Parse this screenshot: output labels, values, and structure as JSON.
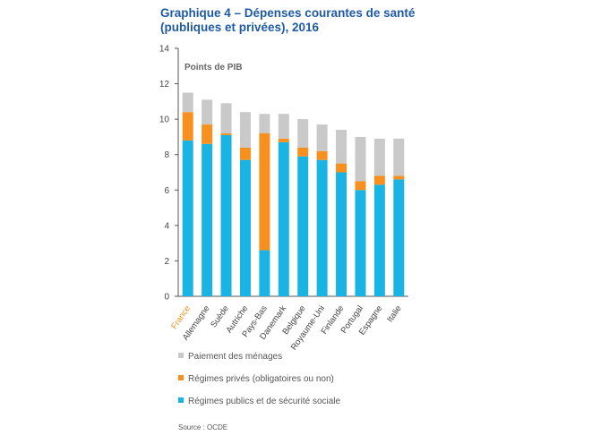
{
  "title": {
    "line1": "Graphique 4 – Dépenses courantes de santé",
    "line2": "(publiques et privées), 2016"
  },
  "source": "Source : OCDE",
  "chart_data": {
    "type": "bar",
    "stacked": true,
    "ylabel": "Points de PIB",
    "ylim": [
      0,
      14
    ],
    "yticks": [
      0,
      2,
      4,
      6,
      8,
      10,
      12,
      14
    ],
    "grid": false,
    "highlight_category": "France",
    "categories": [
      "France",
      "Allemagne",
      "Suède",
      "Autriche",
      "Pays-Bas",
      "Danemark",
      "Belgique",
      "Royaume-Uni",
      "Finlande",
      "Portugal",
      "Espagne",
      "Italie"
    ],
    "series": [
      {
        "name": "Régimes publics et de sécurité sociale",
        "color": "#1ab4e4",
        "values": [
          8.8,
          8.6,
          9.1,
          7.7,
          2.6,
          8.7,
          7.9,
          7.7,
          7.0,
          6.0,
          6.3,
          6.6
        ]
      },
      {
        "name": "Régimes privés (obligatoires ou non)",
        "color": "#f7901e",
        "values": [
          1.6,
          1.1,
          0.1,
          0.7,
          6.6,
          0.2,
          0.5,
          0.5,
          0.5,
          0.5,
          0.5,
          0.2
        ]
      },
      {
        "name": "Paiement des ménages",
        "color": "#c9c9c9",
        "values": [
          1.1,
          1.4,
          1.7,
          2.0,
          1.1,
          1.4,
          1.6,
          1.5,
          1.9,
          2.5,
          2.1,
          2.1
        ]
      }
    ],
    "legend_order": [
      "Paiement des ménages",
      "Régimes privés (obligatoires ou non)",
      "Régimes publics et de sécurité sociale"
    ],
    "legend_position": "bottom",
    "colors": {
      "highlight_label": "#f7901e",
      "tick_label": "#444444",
      "axis": "#555555"
    }
  }
}
